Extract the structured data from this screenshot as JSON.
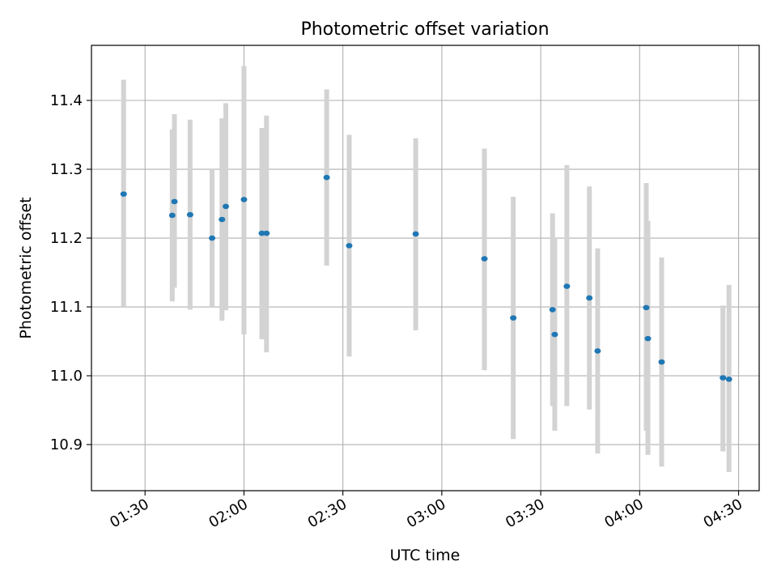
{
  "chart_data": {
    "type": "scatter",
    "title": "Photometric offset variation",
    "xlabel": "UTC time",
    "ylabel": "Photometric offset",
    "x_tick_labels": [
      "01:30",
      "02:00",
      "02:30",
      "03:00",
      "03:30",
      "04:00",
      "04:30"
    ],
    "y_tick_labels": [
      "10.9",
      "11.0",
      "11.1",
      "11.2",
      "11.3",
      "11.4"
    ],
    "xlim": [
      "01:13:45",
      "04:36:15"
    ],
    "ylim": [
      10.833,
      11.48
    ],
    "grid": true,
    "colors": {
      "points": "#1f77b4",
      "errorbars": "#d3d3d3",
      "grid": "#b0b0b0"
    },
    "series": [
      {
        "points": [
          {
            "x": "01:23:30",
            "y": 11.264,
            "ylow": 11.1,
            "yhigh": 11.43
          },
          {
            "x": "01:38:15",
            "y": 11.233,
            "ylow": 11.108,
            "yhigh": 11.358
          },
          {
            "x": "01:38:55",
            "y": 11.253,
            "ylow": 11.128,
            "yhigh": 11.38
          },
          {
            "x": "01:43:40",
            "y": 11.234,
            "ylow": 11.096,
            "yhigh": 11.372
          },
          {
            "x": "01:50:20",
            "y": 11.2,
            "ylow": 11.1,
            "yhigh": 11.3
          },
          {
            "x": "01:53:20",
            "y": 11.227,
            "ylow": 11.08,
            "yhigh": 11.374
          },
          {
            "x": "01:54:30",
            "y": 11.246,
            "ylow": 11.095,
            "yhigh": 11.396
          },
          {
            "x": "02:00:00",
            "y": 11.256,
            "ylow": 11.06,
            "yhigh": 11.45
          },
          {
            "x": "02:05:25",
            "y": 11.207,
            "ylow": 11.053,
            "yhigh": 11.36
          },
          {
            "x": "02:06:50",
            "y": 11.207,
            "ylow": 11.034,
            "yhigh": 11.378
          },
          {
            "x": "02:25:05",
            "y": 11.288,
            "ylow": 11.16,
            "yhigh": 11.416
          },
          {
            "x": "02:31:55",
            "y": 11.189,
            "ylow": 11.028,
            "yhigh": 11.35
          },
          {
            "x": "02:52:05",
            "y": 11.206,
            "ylow": 11.066,
            "yhigh": 11.345
          },
          {
            "x": "03:12:55",
            "y": 11.17,
            "ylow": 11.008,
            "yhigh": 11.33
          },
          {
            "x": "03:21:40",
            "y": 11.084,
            "ylow": 10.908,
            "yhigh": 11.26
          },
          {
            "x": "03:33:35",
            "y": 11.096,
            "ylow": 10.956,
            "yhigh": 11.236
          },
          {
            "x": "03:34:15",
            "y": 11.06,
            "ylow": 10.92,
            "yhigh": 11.2
          },
          {
            "x": "03:37:55",
            "y": 11.13,
            "ylow": 10.956,
            "yhigh": 11.306
          },
          {
            "x": "03:44:45",
            "y": 11.113,
            "ylow": 10.951,
            "yhigh": 11.275
          },
          {
            "x": "03:47:15",
            "y": 11.036,
            "ylow": 10.887,
            "yhigh": 11.185
          },
          {
            "x": "04:02:00",
            "y": 11.099,
            "ylow": 10.92,
            "yhigh": 11.28
          },
          {
            "x": "04:02:30",
            "y": 11.054,
            "ylow": 10.885,
            "yhigh": 11.225
          },
          {
            "x": "04:06:40",
            "y": 11.02,
            "ylow": 10.868,
            "yhigh": 11.172
          },
          {
            "x": "04:25:15",
            "y": 10.997,
            "ylow": 10.89,
            "yhigh": 11.102
          },
          {
            "x": "04:27:05",
            "y": 10.995,
            "ylow": 10.86,
            "yhigh": 11.132
          }
        ]
      }
    ]
  }
}
